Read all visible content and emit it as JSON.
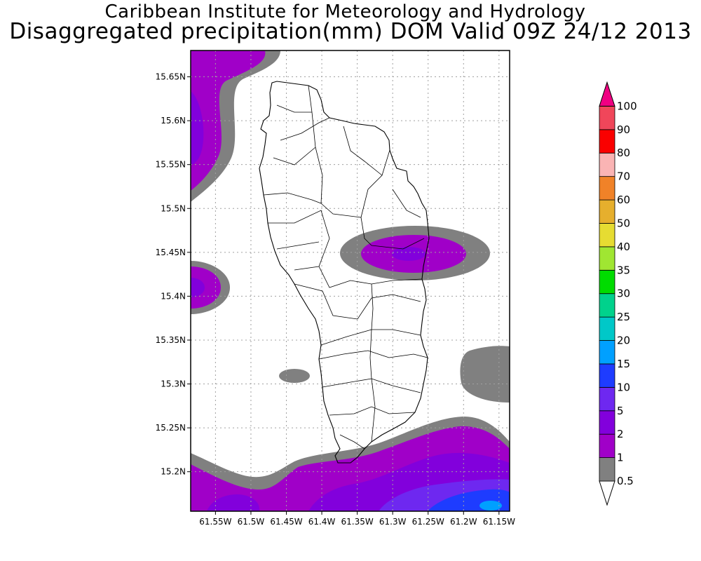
{
  "header": {
    "institution": "Caribbean Institute for Meteorology and Hydrology",
    "title": "Disaggregated precipitation(mm) DOM Valid 09Z 24/12 2013"
  },
  "map": {
    "region": "Dominica",
    "lat_range": [
      15.155,
      15.68
    ],
    "lon_range": [
      -61.585,
      -61.135
    ],
    "lat_ticks": [
      {
        "value": 15.2,
        "label": "15.2N"
      },
      {
        "value": 15.25,
        "label": "15.25N"
      },
      {
        "value": 15.3,
        "label": "15.3N"
      },
      {
        "value": 15.35,
        "label": "15.35N"
      },
      {
        "value": 15.4,
        "label": "15.4N"
      },
      {
        "value": 15.45,
        "label": "15.45N"
      },
      {
        "value": 15.5,
        "label": "15.5N"
      },
      {
        "value": 15.55,
        "label": "15.55N"
      },
      {
        "value": 15.6,
        "label": "15.6N"
      },
      {
        "value": 15.65,
        "label": "15.65N"
      }
    ],
    "lon_ticks": [
      {
        "value": -61.55,
        "label": "61.55W"
      },
      {
        "value": -61.5,
        "label": "61.5W"
      },
      {
        "value": -61.45,
        "label": "61.45W"
      },
      {
        "value": -61.4,
        "label": "61.4W"
      },
      {
        "value": -61.35,
        "label": "61.35W"
      },
      {
        "value": -61.3,
        "label": "61.3W"
      },
      {
        "value": -61.25,
        "label": "61.25W"
      },
      {
        "value": -61.2,
        "label": "61.2W"
      },
      {
        "value": -61.15,
        "label": "61.15W"
      }
    ],
    "grid": "dotted"
  },
  "legend": {
    "classes": [
      {
        "label": "0.5",
        "color": "#ffffff"
      },
      {
        "label": "1",
        "color": "#808080"
      },
      {
        "label": "2",
        "color": "#a000c8"
      },
      {
        "label": "5",
        "color": "#8200dc"
      },
      {
        "label": "10",
        "color": "#6e28f0"
      },
      {
        "label": "15",
        "color": "#1e3cff"
      },
      {
        "label": "20",
        "color": "#00a0ff"
      },
      {
        "label": "25",
        "color": "#00c8c8"
      },
      {
        "label": "30",
        "color": "#00d28c"
      },
      {
        "label": "35",
        "color": "#00dc00"
      },
      {
        "label": "40",
        "color": "#a0e632"
      },
      {
        "label": "50",
        "color": "#e6dc32"
      },
      {
        "label": "60",
        "color": "#e6af2d"
      },
      {
        "label": "70",
        "color": "#f08228"
      },
      {
        "label": "80",
        "color": "#fab4b4"
      },
      {
        "label": "90",
        "color": "#fa0000"
      },
      {
        "label": "100",
        "color": "#f0465a"
      }
    ],
    "overflow_color": "#f00082"
  },
  "colors": {
    "grey": "#808080",
    "purple": "#a000c8",
    "violet": "#8200dc",
    "blue_violet": "#6e28f0",
    "blue": "#1e3cff",
    "cyan_blue": "#00a0ff",
    "coast": "#000000",
    "grid": "#a0a0a0"
  }
}
